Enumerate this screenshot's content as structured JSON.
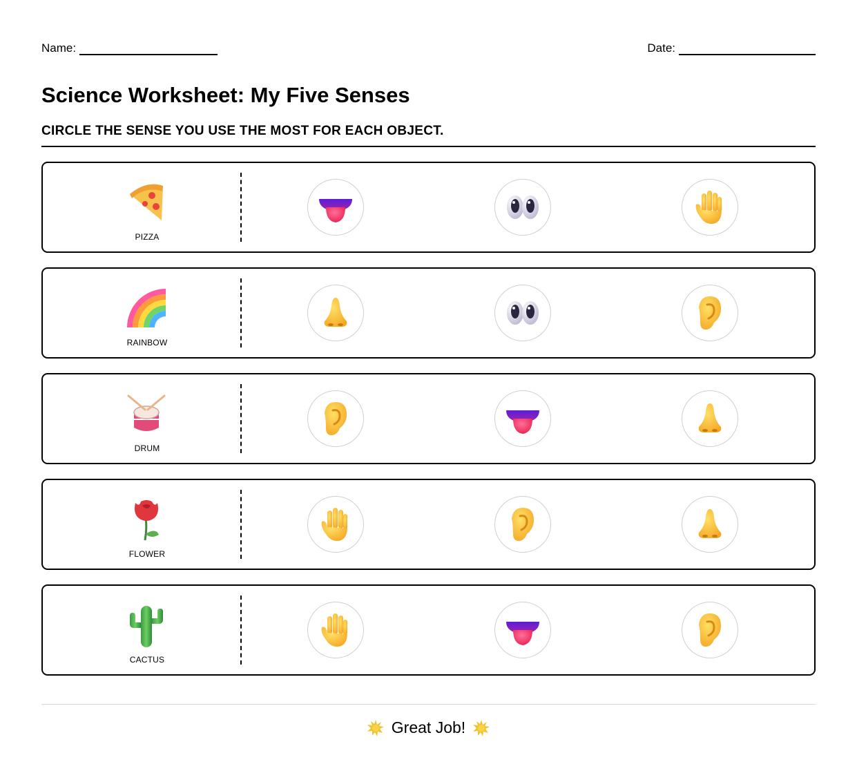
{
  "header": {
    "name_label": "Name:",
    "date_label": "Date:"
  },
  "title": "Science Worksheet: My Five Senses",
  "instruction": "CIRCLE THE SENSE YOU USE THE MOST FOR EACH OBJECT.",
  "rows": [
    {
      "object": "PIZZA",
      "icon": "pizza-icon",
      "senses": [
        "tongue-icon",
        "eyes-icon",
        "hand-icon"
      ]
    },
    {
      "object": "RAINBOW",
      "icon": "rainbow-icon",
      "senses": [
        "nose-icon",
        "eyes-icon",
        "ear-icon"
      ]
    },
    {
      "object": "DRUM",
      "icon": "drum-icon",
      "senses": [
        "ear-icon",
        "tongue-icon",
        "nose-icon"
      ]
    },
    {
      "object": "FLOWER",
      "icon": "rose-icon",
      "senses": [
        "hand-icon",
        "ear-icon",
        "nose-icon"
      ]
    },
    {
      "object": "CACTUS",
      "icon": "cactus-icon",
      "senses": [
        "hand-icon",
        "tongue-icon",
        "ear-icon"
      ]
    }
  ],
  "footer": {
    "text": "Great Job!",
    "icon": "star-burst-icon"
  }
}
